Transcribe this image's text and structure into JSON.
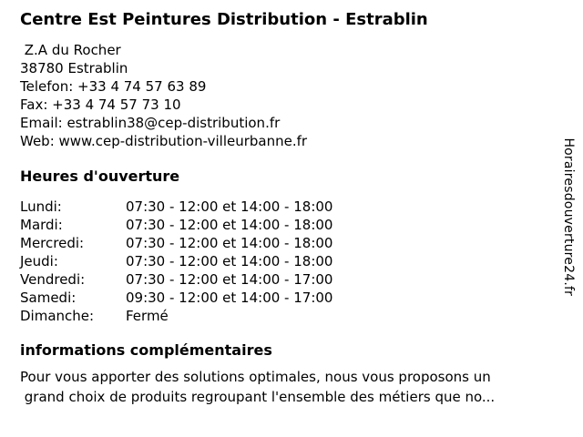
{
  "header": {
    "title": "Centre Est Peintures Distribution - Estrablin"
  },
  "contact": {
    "lines": [
      " Z.A du Rocher",
      "38780 Estrablin",
      "Telefon: +33 4 74 57 63 89",
      "Fax: +33 4 74 57 73 10",
      "Email: estrablin38@cep-distribution.fr",
      "Web: www.cep-distribution-villeurbanne.fr"
    ]
  },
  "hours": {
    "heading": "Heures d'ouverture",
    "rows": [
      {
        "day": "Lundi:",
        "time": "07:30 - 12:00 et 14:00 - 18:00"
      },
      {
        "day": "Mardi:",
        "time": "07:30 - 12:00 et 14:00 - 18:00"
      },
      {
        "day": "Mercredi:",
        "time": "07:30 - 12:00 et 14:00 - 18:00"
      },
      {
        "day": "Jeudi:",
        "time": "07:30 - 12:00 et 14:00 - 18:00"
      },
      {
        "day": "Vendredi:",
        "time": "07:30 - 12:00 et 14:00 - 17:00"
      },
      {
        "day": "Samedi:",
        "time": "09:30 - 12:00 et 14:00 - 17:00"
      },
      {
        "day": "Dimanche:",
        "time": "Fermé"
      }
    ]
  },
  "info": {
    "heading": "informations complémentaires",
    "lines": [
      "Pour vous apporter des solutions optimales, nous vous proposons un",
      " grand choix de produits regroupant l'ensemble des métiers que no..."
    ]
  },
  "watermark": {
    "text": "Horairesdouverture24.fr"
  },
  "colors": {
    "background": "#ffffff",
    "text": "#000000"
  }
}
